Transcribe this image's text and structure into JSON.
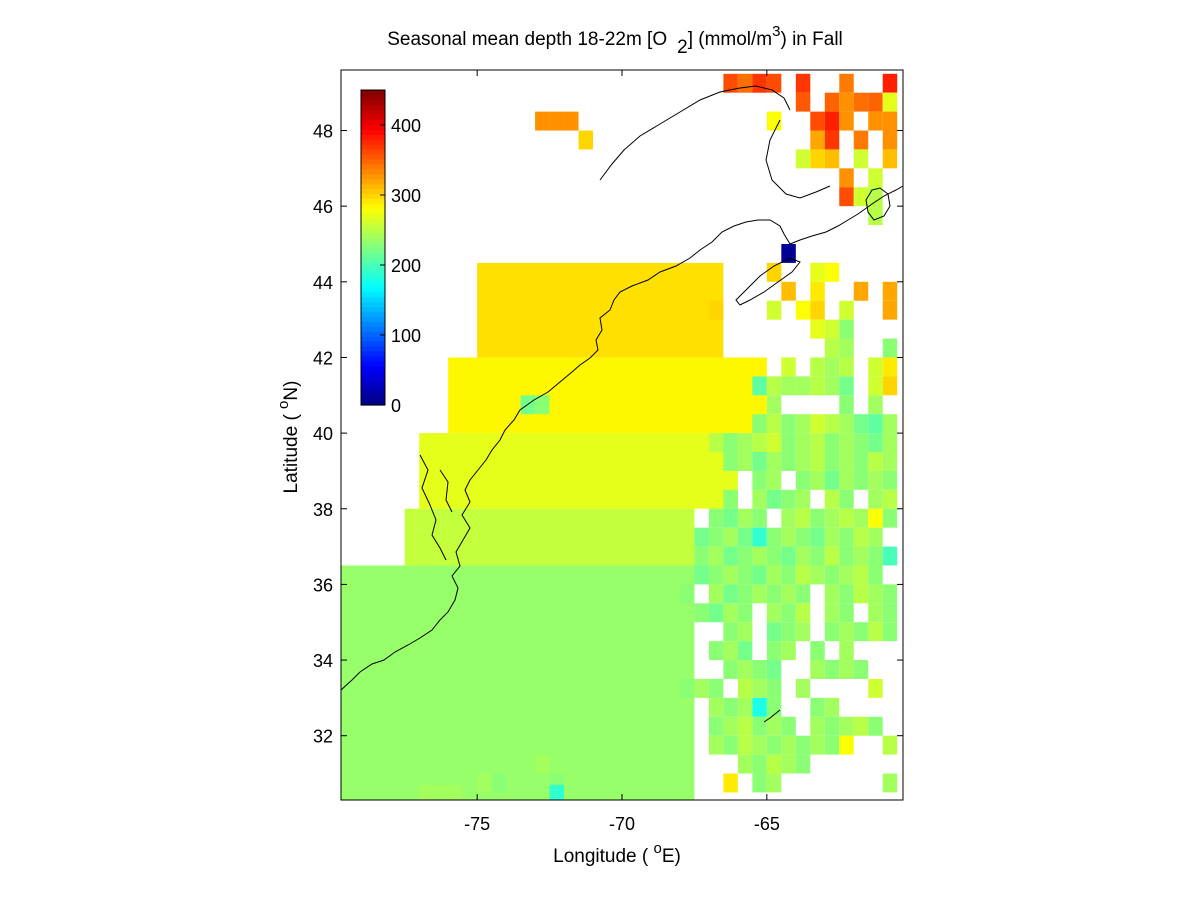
{
  "chart_data": {
    "type": "heatmap",
    "title": {
      "pre": "Seasonal mean depth 18-22m [O",
      "sub": "2",
      "mid": "] (mmol/m",
      "sup": "3",
      "post": ") in  Fall"
    },
    "xlabel": {
      "pre": "Longitude ( ",
      "sup": "o",
      "post": "E)"
    },
    "ylabel": {
      "pre": "Latitude ( ",
      "sup": "o",
      "post": "N)"
    },
    "xlim": [
      -79.7,
      -60.3
    ],
    "ylim": [
      30.3,
      49.6
    ],
    "xticks": [
      -75,
      -70,
      -65
    ],
    "xtick_labels": [
      "-75",
      "-70",
      "-65"
    ],
    "yticks": [
      32,
      34,
      36,
      38,
      40,
      42,
      44,
      46,
      48
    ],
    "ytick_labels": [
      "32",
      "34",
      "36",
      "38",
      "40",
      "42",
      "44",
      "46",
      "48"
    ],
    "colorbar": {
      "range": [
        0,
        450
      ],
      "colormap": "jet",
      "ticks": [
        0,
        100,
        200,
        300,
        400
      ],
      "tick_labels": [
        "0",
        "100",
        "200",
        "300",
        "400"
      ],
      "placement": "inside-top-left"
    },
    "cell_size_deg": 0.5,
    "grid": false,
    "cells": [
      [
        -66.25,
        49.25,
        360
      ],
      [
        -65.75,
        49.25,
        345
      ],
      [
        -65.25,
        49.25,
        370
      ],
      [
        -64.75,
        49.25,
        360
      ],
      [
        -63.75,
        49.25,
        370
      ],
      [
        -62.25,
        49.25,
        340
      ],
      [
        -60.75,
        49.25,
        380
      ],
      [
        -63.75,
        48.75,
        355
      ],
      [
        -62.75,
        48.75,
        350
      ],
      [
        -62.25,
        48.75,
        330
      ],
      [
        -61.75,
        48.75,
        345
      ],
      [
        -61.25,
        48.75,
        350
      ],
      [
        -60.75,
        48.75,
        270
      ],
      [
        -72.75,
        48.25,
        330
      ],
      [
        -72.25,
        48.25,
        330
      ],
      [
        -71.75,
        48.25,
        330
      ],
      [
        -64.75,
        48.25,
        280
      ],
      [
        -63.25,
        48.25,
        360
      ],
      [
        -62.75,
        48.25,
        380
      ],
      [
        -62.25,
        48.25,
        330
      ],
      [
        -61.25,
        48.25,
        330
      ],
      [
        -60.75,
        48.25,
        330
      ],
      [
        -71.25,
        47.75,
        300
      ],
      [
        -63.25,
        47.75,
        320
      ],
      [
        -62.75,
        47.75,
        370
      ],
      [
        -61.75,
        47.75,
        340
      ],
      [
        -60.75,
        47.75,
        330
      ],
      [
        -63.75,
        47.25,
        260
      ],
      [
        -63.25,
        47.25,
        300
      ],
      [
        -62.75,
        47.25,
        310
      ],
      [
        -61.75,
        47.25,
        260
      ],
      [
        -60.75,
        47.25,
        310
      ],
      [
        -62.25,
        46.75,
        330
      ],
      [
        -61.25,
        46.75,
        260
      ],
      [
        -62.25,
        46.25,
        360
      ],
      [
        -61.75,
        46.25,
        260
      ],
      [
        -61.25,
        46.25,
        250
      ],
      [
        -61.25,
        45.75,
        250
      ],
      [
        -64.25,
        44.75,
        10
      ],
      [
        -64.75,
        44.25,
        300
      ],
      [
        -63.25,
        44.25,
        270
      ],
      [
        -62.75,
        44.25,
        280
      ],
      [
        -66.75,
        43.25,
        300
      ],
      [
        -64.25,
        43.75,
        310
      ],
      [
        -63.25,
        43.75,
        290
      ],
      [
        -61.75,
        43.75,
        320
      ],
      [
        -60.75,
        43.75,
        320
      ],
      [
        -64.75,
        43.25,
        260
      ],
      [
        -63.75,
        43.25,
        280
      ],
      [
        -63.25,
        43.25,
        300
      ],
      [
        -62.25,
        43.25,
        260
      ],
      [
        -60.75,
        43.25,
        320
      ],
      [
        -63.25,
        42.75,
        270
      ],
      [
        -62.75,
        42.75,
        260
      ],
      [
        -62.25,
        42.75,
        230
      ],
      [
        -62.75,
        42.25,
        250
      ],
      [
        -62.25,
        42.25,
        240
      ],
      [
        -60.75,
        42.25,
        230
      ],
      [
        -64.25,
        41.75,
        260
      ],
      [
        -63.25,
        41.75,
        250
      ],
      [
        -62.75,
        41.75,
        240
      ],
      [
        -62.25,
        41.75,
        250
      ],
      [
        -61.25,
        41.75,
        260
      ],
      [
        -60.75,
        41.75,
        290
      ],
      [
        -65.25,
        41.25,
        210
      ],
      [
        -64.75,
        41.25,
        250
      ],
      [
        -64.25,
        41.25,
        240
      ],
      [
        -63.75,
        41.25,
        240
      ],
      [
        -63.25,
        41.25,
        250
      ],
      [
        -62.75,
        41.25,
        240
      ],
      [
        -62.25,
        41.25,
        220
      ],
      [
        -61.25,
        41.25,
        260
      ],
      [
        -60.75,
        41.25,
        300
      ],
      [
        -64.75,
        40.75,
        240
      ],
      [
        -62.25,
        40.75,
        230
      ],
      [
        -61.25,
        40.75,
        240
      ],
      [
        -73.25,
        40.75,
        220
      ],
      [
        -72.75,
        40.75,
        230
      ],
      [
        -65.25,
        40.25,
        230
      ],
      [
        -64.75,
        40.25,
        250
      ],
      [
        -64.25,
        40.25,
        230
      ],
      [
        -63.75,
        40.25,
        240
      ],
      [
        -63.25,
        40.25,
        260
      ],
      [
        -62.75,
        40.25,
        250
      ],
      [
        -62.25,
        40.25,
        240
      ],
      [
        -61.75,
        40.25,
        220
      ],
      [
        -61.25,
        40.25,
        210
      ],
      [
        -60.75,
        40.25,
        240
      ],
      [
        -66.75,
        39.75,
        250
      ],
      [
        -66.25,
        39.75,
        230
      ],
      [
        -65.75,
        39.75,
        240
      ],
      [
        -65.25,
        39.75,
        250
      ],
      [
        -64.75,
        39.75,
        260
      ],
      [
        -64.25,
        39.75,
        230
      ],
      [
        -63.75,
        39.75,
        240
      ],
      [
        -63.25,
        39.75,
        250
      ],
      [
        -62.75,
        39.75,
        230
      ],
      [
        -62.25,
        39.75,
        240
      ],
      [
        -61.75,
        39.75,
        230
      ],
      [
        -61.25,
        39.75,
        220
      ],
      [
        -60.75,
        39.75,
        240
      ],
      [
        -66.25,
        39.25,
        230
      ],
      [
        -65.75,
        39.25,
        240
      ],
      [
        -65.25,
        39.25,
        220
      ],
      [
        -64.75,
        39.25,
        240
      ],
      [
        -64.25,
        39.25,
        230
      ],
      [
        -63.75,
        39.25,
        240
      ],
      [
        -63.25,
        39.25,
        250
      ],
      [
        -62.75,
        39.25,
        230
      ],
      [
        -62.25,
        39.25,
        240
      ],
      [
        -61.75,
        39.25,
        230
      ],
      [
        -61.25,
        39.25,
        250
      ],
      [
        -60.75,
        39.25,
        240
      ],
      [
        -65.25,
        38.75,
        230
      ],
      [
        -64.75,
        38.75,
        240
      ],
      [
        -63.75,
        38.75,
        230
      ],
      [
        -63.25,
        38.75,
        240
      ],
      [
        -62.75,
        38.75,
        220
      ],
      [
        -62.25,
        38.75,
        240
      ],
      [
        -61.75,
        38.75,
        230
      ],
      [
        -61.25,
        38.75,
        240
      ],
      [
        -60.75,
        38.75,
        230
      ],
      [
        -66.25,
        38.25,
        230
      ],
      [
        -65.25,
        38.25,
        240
      ],
      [
        -64.75,
        38.25,
        220
      ],
      [
        -64.25,
        38.25,
        230
      ],
      [
        -63.75,
        38.25,
        240
      ],
      [
        -62.75,
        38.25,
        250
      ],
      [
        -62.25,
        38.25,
        230
      ],
      [
        -61.25,
        38.25,
        240
      ],
      [
        -60.75,
        38.25,
        250
      ],
      [
        -66.75,
        37.75,
        230
      ],
      [
        -66.25,
        37.75,
        220
      ],
      [
        -65.75,
        37.75,
        240
      ],
      [
        -65.25,
        37.75,
        230
      ],
      [
        -64.25,
        37.75,
        240
      ],
      [
        -63.75,
        37.75,
        250
      ],
      [
        -63.25,
        37.75,
        230
      ],
      [
        -62.75,
        37.75,
        240
      ],
      [
        -62.25,
        37.75,
        250
      ],
      [
        -61.75,
        37.75,
        240
      ],
      [
        -61.25,
        37.75,
        280
      ],
      [
        -60.75,
        37.75,
        230
      ],
      [
        -67.25,
        37.25,
        220
      ],
      [
        -66.75,
        37.25,
        230
      ],
      [
        -66.25,
        37.25,
        240
      ],
      [
        -65.75,
        37.25,
        220
      ],
      [
        -65.25,
        37.25,
        190
      ],
      [
        -64.75,
        37.25,
        230
      ],
      [
        -64.25,
        37.25,
        240
      ],
      [
        -63.75,
        37.25,
        230
      ],
      [
        -63.25,
        37.25,
        220
      ],
      [
        -62.75,
        37.25,
        240
      ],
      [
        -62.25,
        37.25,
        230
      ],
      [
        -61.75,
        37.25,
        250
      ],
      [
        -61.25,
        37.25,
        240
      ],
      [
        -67.25,
        36.75,
        230
      ],
      [
        -66.75,
        36.75,
        240
      ],
      [
        -66.25,
        36.75,
        220
      ],
      [
        -65.75,
        36.75,
        230
      ],
      [
        -65.25,
        36.75,
        240
      ],
      [
        -64.75,
        36.75,
        230
      ],
      [
        -64.25,
        36.75,
        220
      ],
      [
        -63.75,
        36.75,
        240
      ],
      [
        -63.25,
        36.75,
        230
      ],
      [
        -62.75,
        36.75,
        250
      ],
      [
        -62.25,
        36.75,
        230
      ],
      [
        -61.75,
        36.75,
        240
      ],
      [
        -61.25,
        36.75,
        230
      ],
      [
        -60.75,
        36.75,
        200
      ],
      [
        -67.25,
        36.25,
        220
      ],
      [
        -66.75,
        36.25,
        230
      ],
      [
        -66.25,
        36.25,
        240
      ],
      [
        -65.75,
        36.25,
        230
      ],
      [
        -65.25,
        36.25,
        220
      ],
      [
        -64.75,
        36.25,
        240
      ],
      [
        -64.25,
        36.25,
        230
      ],
      [
        -63.75,
        36.25,
        250
      ],
      [
        -63.25,
        36.25,
        240
      ],
      [
        -62.75,
        36.25,
        230
      ],
      [
        -62.25,
        36.25,
        240
      ],
      [
        -61.75,
        36.25,
        250
      ],
      [
        -61.25,
        36.25,
        230
      ],
      [
        -67.75,
        35.75,
        230
      ],
      [
        -66.75,
        35.75,
        240
      ],
      [
        -66.25,
        35.75,
        220
      ],
      [
        -65.75,
        35.75,
        230
      ],
      [
        -65.25,
        35.75,
        240
      ],
      [
        -64.75,
        35.75,
        230
      ],
      [
        -64.25,
        35.75,
        240
      ],
      [
        -63.75,
        35.75,
        230
      ],
      [
        -62.75,
        35.75,
        240
      ],
      [
        -62.25,
        35.75,
        230
      ],
      [
        -61.75,
        35.75,
        250
      ],
      [
        -61.25,
        35.75,
        240
      ],
      [
        -60.75,
        35.75,
        230
      ],
      [
        -67.25,
        35.25,
        230
      ],
      [
        -66.75,
        35.25,
        220
      ],
      [
        -66.25,
        35.25,
        240
      ],
      [
        -65.75,
        35.25,
        230
      ],
      [
        -64.75,
        35.25,
        240
      ],
      [
        -64.25,
        35.25,
        230
      ],
      [
        -63.75,
        35.25,
        250
      ],
      [
        -62.75,
        35.25,
        240
      ],
      [
        -62.25,
        35.25,
        230
      ],
      [
        -61.25,
        35.25,
        240
      ],
      [
        -60.75,
        35.25,
        230
      ],
      [
        -66.25,
        34.75,
        230
      ],
      [
        -65.75,
        34.75,
        240
      ],
      [
        -64.75,
        34.75,
        220
      ],
      [
        -64.25,
        34.75,
        230
      ],
      [
        -63.75,
        34.75,
        240
      ],
      [
        -62.75,
        34.75,
        230
      ],
      [
        -62.25,
        34.75,
        240
      ],
      [
        -61.75,
        34.75,
        230
      ],
      [
        -61.25,
        34.75,
        250
      ],
      [
        -60.75,
        34.75,
        230
      ],
      [
        -66.75,
        34.25,
        230
      ],
      [
        -66.25,
        34.25,
        240
      ],
      [
        -65.75,
        34.25,
        220
      ],
      [
        -64.75,
        34.25,
        230
      ],
      [
        -64.25,
        34.25,
        240
      ],
      [
        -63.25,
        34.25,
        230
      ],
      [
        -62.25,
        34.25,
        240
      ],
      [
        -66.25,
        33.75,
        230
      ],
      [
        -65.75,
        33.75,
        240
      ],
      [
        -65.25,
        33.75,
        230
      ],
      [
        -64.75,
        33.75,
        220
      ],
      [
        -63.25,
        33.75,
        240
      ],
      [
        -62.75,
        33.75,
        230
      ],
      [
        -62.25,
        33.75,
        240
      ],
      [
        -61.75,
        33.75,
        230
      ],
      [
        -67.75,
        33.25,
        230
      ],
      [
        -67.25,
        33.25,
        240
      ],
      [
        -66.75,
        33.25,
        230
      ],
      [
        -65.75,
        33.25,
        250
      ],
      [
        -65.25,
        33.25,
        240
      ],
      [
        -64.75,
        33.25,
        230
      ],
      [
        -63.75,
        33.25,
        240
      ],
      [
        -61.25,
        33.25,
        260
      ],
      [
        -66.75,
        32.75,
        240
      ],
      [
        -66.25,
        32.75,
        230
      ],
      [
        -65.75,
        32.75,
        240
      ],
      [
        -65.25,
        32.75,
        180
      ],
      [
        -64.75,
        32.75,
        230
      ],
      [
        -63.25,
        32.75,
        230
      ],
      [
        -62.75,
        32.75,
        240
      ],
      [
        -66.75,
        32.25,
        230
      ],
      [
        -66.25,
        32.25,
        240
      ],
      [
        -65.75,
        32.25,
        250
      ],
      [
        -65.25,
        32.25,
        230
      ],
      [
        -64.75,
        32.25,
        240
      ],
      [
        -64.25,
        32.25,
        230
      ],
      [
        -63.25,
        32.25,
        240
      ],
      [
        -62.75,
        32.25,
        230
      ],
      [
        -62.25,
        32.25,
        240
      ],
      [
        -61.75,
        32.25,
        250
      ],
      [
        -61.25,
        32.25,
        230
      ],
      [
        -66.75,
        31.75,
        240
      ],
      [
        -66.25,
        31.75,
        230
      ],
      [
        -65.75,
        31.75,
        250
      ],
      [
        -65.25,
        31.75,
        240
      ],
      [
        -64.75,
        31.75,
        230
      ],
      [
        -64.25,
        31.75,
        240
      ],
      [
        -63.75,
        31.75,
        230
      ],
      [
        -63.25,
        31.75,
        240
      ],
      [
        -62.75,
        31.75,
        230
      ],
      [
        -62.25,
        31.75,
        280
      ],
      [
        -60.75,
        31.75,
        250
      ],
      [
        -65.75,
        31.25,
        240
      ],
      [
        -65.25,
        31.25,
        230
      ],
      [
        -64.75,
        31.25,
        250
      ],
      [
        -64.25,
        31.25,
        240
      ],
      [
        -63.75,
        31.25,
        230
      ],
      [
        -65.25,
        30.75,
        230
      ],
      [
        -64.75,
        30.75,
        240
      ],
      [
        -60.75,
        30.75,
        240
      ],
      [
        -66.25,
        30.75,
        290
      ],
      [
        -72.75,
        31.25,
        240
      ],
      [
        -72.25,
        30.75,
        230
      ],
      [
        -72.25,
        30.45,
        190
      ],
      [
        -74.75,
        30.75,
        240
      ],
      [
        -74.25,
        30.75,
        230
      ],
      [
        -76.25,
        30.45,
        240
      ],
      [
        -75.75,
        30.45,
        240
      ],
      [
        -76.75,
        30.45,
        240
      ]
    ],
    "regions": [
      [
        -75.0,
        -66.5,
        42.0,
        44.5,
        295
      ],
      [
        -76.0,
        -65.0,
        40.0,
        42.0,
        285
      ],
      [
        -77.0,
        -66.0,
        38.0,
        40.0,
        270
      ],
      [
        -77.5,
        -67.5,
        36.5,
        38.0,
        255
      ],
      [
        -79.7,
        -67.5,
        30.3,
        36.5,
        235
      ]
    ]
  }
}
